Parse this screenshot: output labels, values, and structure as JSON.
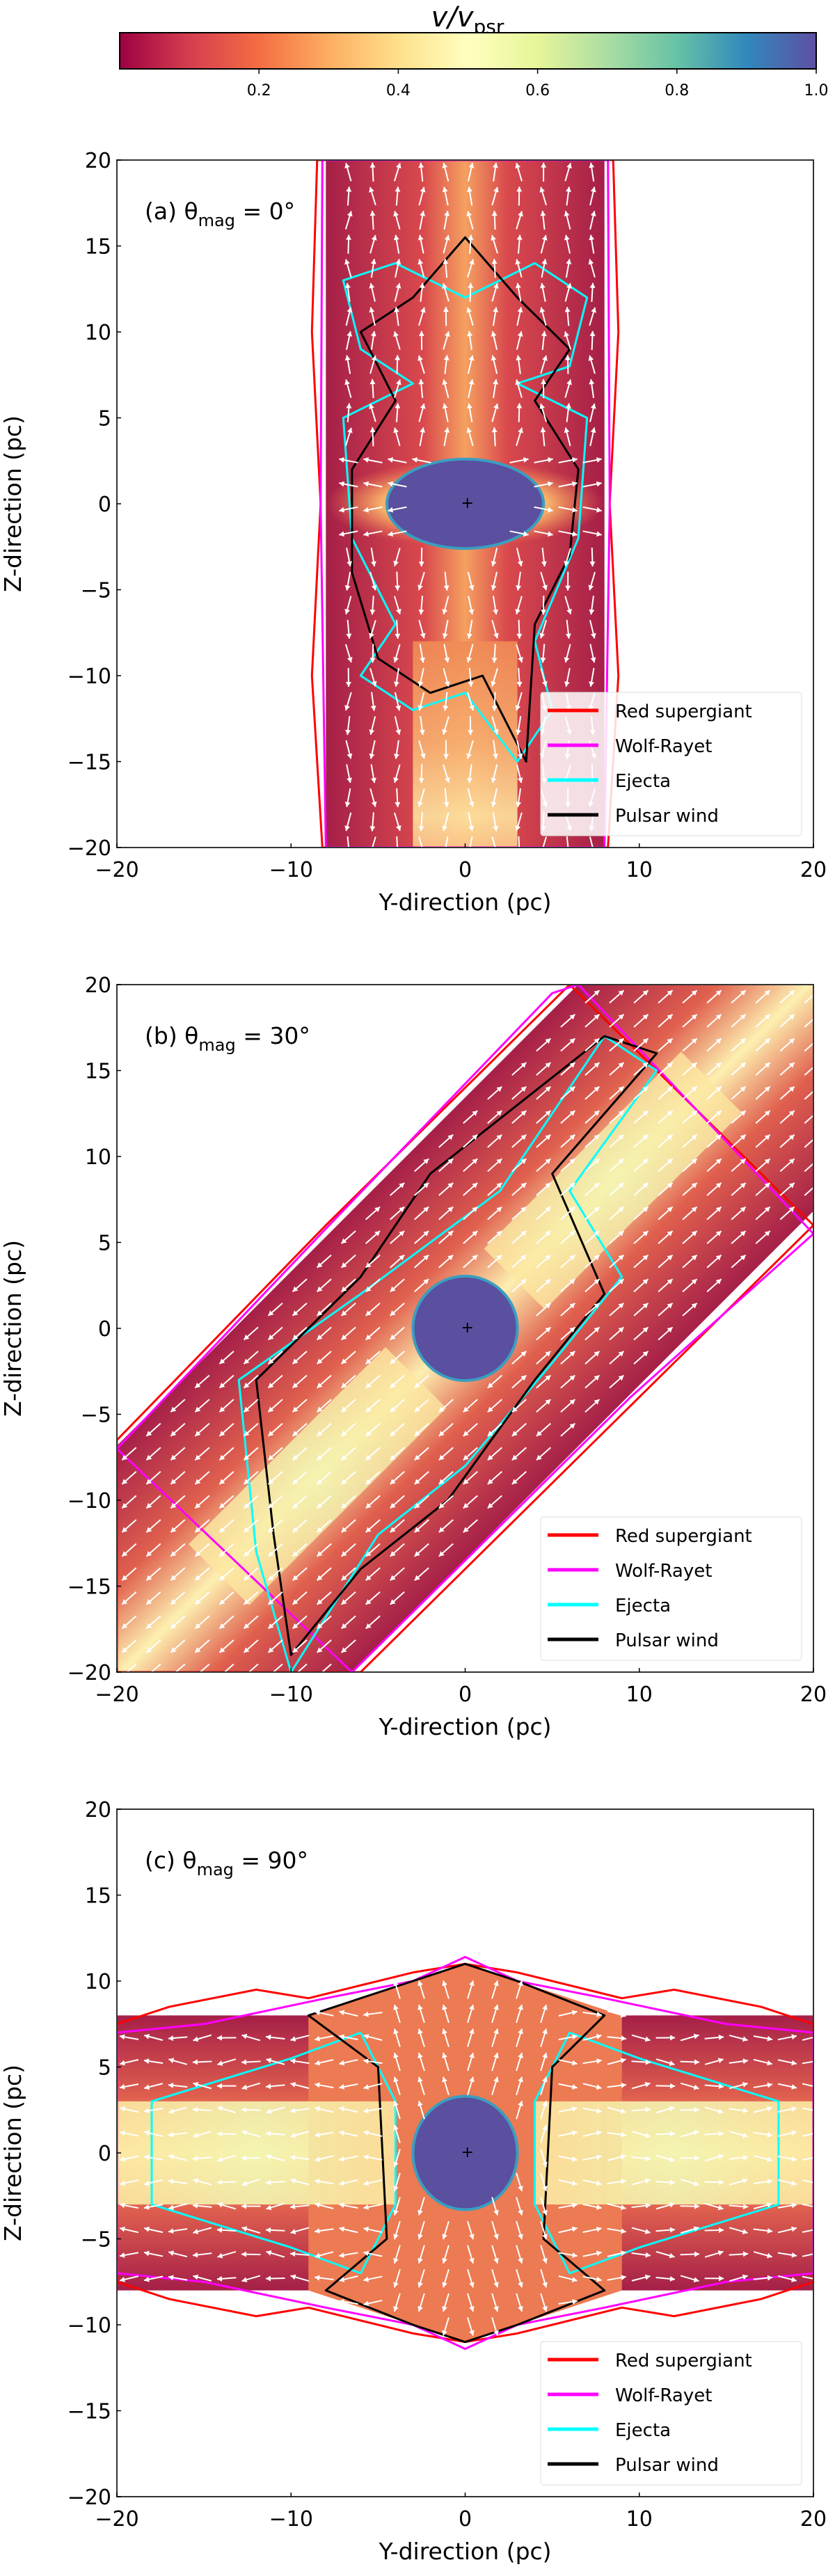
{
  "colorbar": {
    "label": "v/v",
    "label_sub": "psr",
    "range": [
      0,
      1
    ],
    "ticks": [
      "0.2",
      "0.4",
      "0.6",
      "0.8",
      "1.0"
    ],
    "tick_values": [
      0.2,
      0.4,
      0.6,
      0.8,
      1.0
    ],
    "colormap_stops": [
      "#9e0142",
      "#d53e4f",
      "#f46d43",
      "#fdae61",
      "#fee08b",
      "#ffffbf",
      "#e6f598",
      "#abdda4",
      "#66c2a5",
      "#3288bd",
      "#5e4fa2"
    ]
  },
  "chart_data": [
    {
      "type": "heatmap",
      "title_prefix": "(a) θ",
      "title_sub": "mag",
      "title_suffix": " = 0°",
      "xlabel": "Y-direction (pc)",
      "ylabel": "Z-direction (pc)",
      "xlim": [
        -20,
        20
      ],
      "ylim": [
        -20,
        20
      ],
      "xticks": [
        "−20",
        "−10",
        "0",
        "10",
        "20"
      ],
      "xtick_values": [
        -20,
        -10,
        0,
        10,
        20
      ],
      "yticks": [
        "20",
        "15",
        "10",
        "5",
        "0",
        "−5",
        "−10",
        "−15",
        "−20"
      ],
      "ytick_values": [
        20,
        15,
        10,
        5,
        0,
        -5,
        -10,
        -15,
        -20
      ],
      "theta_mag_deg": 0,
      "legend": [
        {
          "label": "Red supergiant",
          "color": "#ff0000"
        },
        {
          "label": "Wolf-Rayet",
          "color": "#ff00ff"
        },
        {
          "label": "Ejecta",
          "color": "#00ffff"
        },
        {
          "label": "Pulsar wind",
          "color": "#000000"
        }
      ],
      "legend_position": "lower right"
    },
    {
      "type": "heatmap",
      "title_prefix": "(b) θ",
      "title_sub": "mag",
      "title_suffix": " = 30°",
      "xlabel": "Y-direction (pc)",
      "ylabel": "Z-direction (pc)",
      "xlim": [
        -20,
        20
      ],
      "ylim": [
        -20,
        20
      ],
      "xticks": [
        "−20",
        "−10",
        "0",
        "10",
        "20"
      ],
      "xtick_values": [
        -20,
        -10,
        0,
        10,
        20
      ],
      "yticks": [
        "20",
        "15",
        "10",
        "5",
        "0",
        "−5",
        "−10",
        "−15",
        "−20"
      ],
      "ytick_values": [
        20,
        15,
        10,
        5,
        0,
        -5,
        -10,
        -15,
        -20
      ],
      "theta_mag_deg": 30,
      "legend": [
        {
          "label": "Red supergiant",
          "color": "#ff0000"
        },
        {
          "label": "Wolf-Rayet",
          "color": "#ff00ff"
        },
        {
          "label": "Ejecta",
          "color": "#00ffff"
        },
        {
          "label": "Pulsar wind",
          "color": "#000000"
        }
      ],
      "legend_position": "lower right"
    },
    {
      "type": "heatmap",
      "title_prefix": "(c) θ",
      "title_sub": "mag",
      "title_suffix": " = 90°",
      "xlabel": "Y-direction (pc)",
      "ylabel": "Z-direction (pc)",
      "xlim": [
        -20,
        20
      ],
      "ylim": [
        -20,
        20
      ],
      "xticks": [
        "−20",
        "−10",
        "0",
        "10",
        "20"
      ],
      "xtick_values": [
        -20,
        -10,
        0,
        10,
        20
      ],
      "yticks": [
        "20",
        "15",
        "10",
        "5",
        "0",
        "−5",
        "−10",
        "−15",
        "−20"
      ],
      "ytick_values": [
        20,
        15,
        10,
        5,
        0,
        -5,
        -10,
        -15,
        -20
      ],
      "theta_mag_deg": 90,
      "legend": [
        {
          "label": "Red supergiant",
          "color": "#ff0000"
        },
        {
          "label": "Wolf-Rayet",
          "color": "#ff00ff"
        },
        {
          "label": "Ejecta",
          "color": "#00ffff"
        },
        {
          "label": "Pulsar wind",
          "color": "#000000"
        }
      ],
      "legend_position": "lower right"
    }
  ]
}
